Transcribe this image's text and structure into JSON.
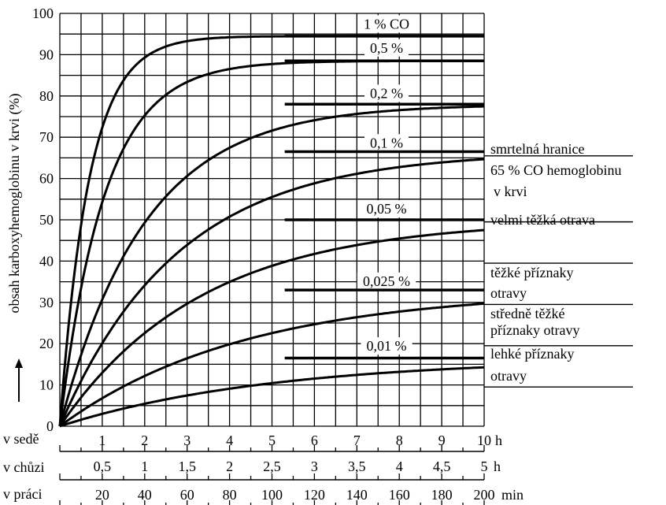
{
  "chart_data": {
    "type": "line",
    "ylabel": "obsah karboxyhemoglobinu v krvi (%)",
    "yticks": [
      "0",
      "10",
      "20",
      "30",
      "40",
      "50",
      "60",
      "70",
      "80",
      "90",
      "100"
    ],
    "ylim": [
      0,
      100
    ],
    "xlim": [
      0,
      10
    ],
    "x_axes": [
      {
        "name": "v sedě",
        "unit": "h",
        "ticks": [
          {
            "v": 1,
            "t": "1"
          },
          {
            "v": 2,
            "t": "2"
          },
          {
            "v": 3,
            "t": "3"
          },
          {
            "v": 4,
            "t": "4"
          },
          {
            "v": 5,
            "t": "5"
          },
          {
            "v": 6,
            "t": "6"
          },
          {
            "v": 7,
            "t": "7"
          },
          {
            "v": 8,
            "t": "8"
          },
          {
            "v": 9,
            "t": "9"
          },
          {
            "v": 10,
            "t": "10"
          }
        ]
      },
      {
        "name": "v chůzi",
        "unit": "h",
        "ticks": [
          {
            "v": 1,
            "t": "0,5"
          },
          {
            "v": 2,
            "t": "1"
          },
          {
            "v": 3,
            "t": "1,5"
          },
          {
            "v": 4,
            "t": "2"
          },
          {
            "v": 5,
            "t": "2,5"
          },
          {
            "v": 6,
            "t": "3"
          },
          {
            "v": 7,
            "t": "3,5"
          },
          {
            "v": 8,
            "t": "4"
          },
          {
            "v": 9,
            "t": "4,5"
          },
          {
            "v": 10,
            "t": "5"
          }
        ]
      },
      {
        "name": "v práci",
        "unit": "min",
        "ticks": [
          {
            "v": 1,
            "t": "20"
          },
          {
            "v": 2,
            "t": "40"
          },
          {
            "v": 3,
            "t": "60"
          },
          {
            "v": 4,
            "t": "80"
          },
          {
            "v": 5,
            "t": "100"
          },
          {
            "v": 6,
            "t": "120"
          },
          {
            "v": 7,
            "t": "140"
          },
          {
            "v": 8,
            "t": "160"
          },
          {
            "v": 9,
            "t": "180"
          },
          {
            "v": 10,
            "t": "200"
          }
        ]
      }
    ],
    "series": [
      {
        "name": "1 % CO",
        "saturation": 94.5,
        "k": 1.45,
        "label_x": 7.7,
        "label_y": 96.3
      },
      {
        "name": "0,5 %",
        "saturation": 88.5,
        "k": 0.95,
        "label_x": 7.7,
        "label_y": 90.5
      },
      {
        "name": "0,2 %",
        "saturation": 78,
        "k": 0.5,
        "label_x": 7.7,
        "label_y": 79.5
      },
      {
        "name": "0,1 %",
        "saturation": 66.5,
        "k": 0.36,
        "label_x": 7.7,
        "label_y": 67.5
      },
      {
        "name": "0,05 %",
        "saturation": 50,
        "k": 0.3,
        "label_x": 7.7,
        "label_y": 51.5
      },
      {
        "name": "0,025 %",
        "saturation": 33,
        "k": 0.23,
        "label_x": 7.7,
        "label_y": 34.0
      },
      {
        "name": "0,01 %",
        "saturation": 16.5,
        "k": 0.2,
        "label_x": 7.7,
        "label_y": 18.3
      }
    ],
    "levels": [
      {
        "line_y": 65.5,
        "lines": [
          "smrtelná hranice",
          "65 % CO hemoglobinu",
          "v krvi"
        ]
      },
      {
        "line_y": 49.5,
        "lines": [
          "velmi těžká otrava"
        ]
      },
      {
        "line_y": 39.5,
        "lines": [
          "těžké příznaky",
          "otravy"
        ]
      },
      {
        "line_y": 29.5,
        "lines": [
          "středně těžké",
          "příznaky otravy"
        ]
      },
      {
        "line_y": 19.5,
        "lines": [
          "lehké příznaky",
          "otravy"
        ]
      },
      {
        "line_y": 9.5,
        "lines": []
      }
    ]
  }
}
